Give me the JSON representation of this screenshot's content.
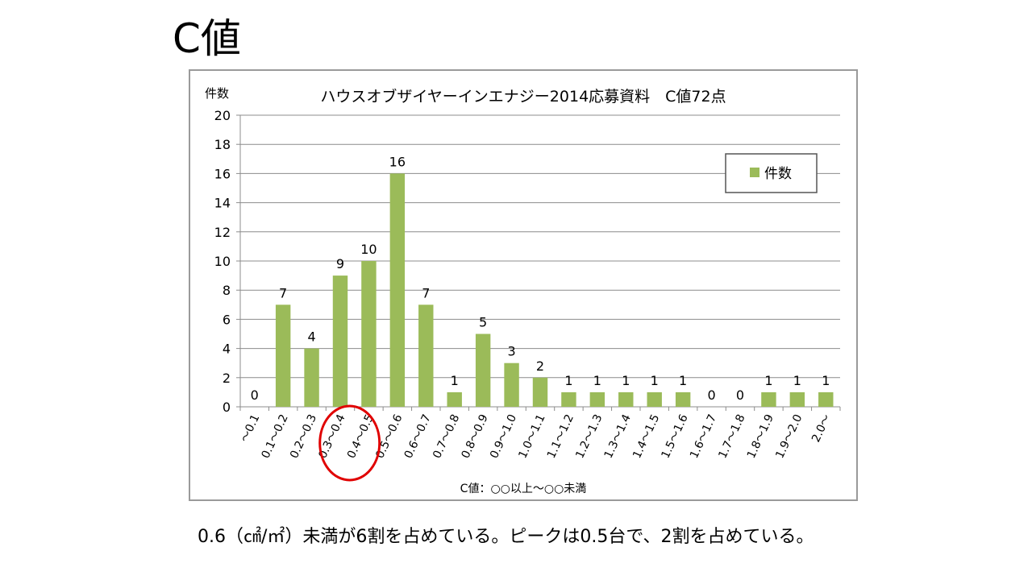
{
  "slide": {
    "title": "C値",
    "caption": "0.6（㎠/㎡）未満が6割を占めている。ピークは0.5台で、2割を占めている。"
  },
  "chart_data": {
    "type": "bar",
    "title": "ハウスオブザイヤーインエナジー2014応募資料　C値72点",
    "ylabel": "件数",
    "xlabel": "C値：○○以上～○○未満",
    "ylim": [
      0,
      20
    ],
    "yticks": [
      0,
      2,
      4,
      6,
      8,
      10,
      12,
      14,
      16,
      18,
      20
    ],
    "grid": true,
    "legend_position": "top-right",
    "bar_color": "#9bbb59",
    "highlight_color": "#e00000",
    "categories": [
      "～0.1",
      "0.1～0.2",
      "0.2～0.3",
      "0.3～0.4",
      "0.4～0.5",
      "0.5～0.6",
      "0.6～0.7",
      "0.7～0.8",
      "0.8～0.9",
      "0.9～1.0",
      "1.0～1.1",
      "1.1～1.2",
      "1.2～1.3",
      "1.3～1.4",
      "1.4～1.5",
      "1.5～1.6",
      "1.6～1.7",
      "1.7～1.8",
      "1.8～1.9",
      "1.9～2.0",
      "2.0～"
    ],
    "series": [
      {
        "name": "件数",
        "values": [
          0,
          7,
          4,
          9,
          10,
          16,
          7,
          1,
          5,
          3,
          2,
          1,
          1,
          1,
          1,
          1,
          0,
          0,
          1,
          1,
          1
        ]
      }
    ],
    "highlighted_categories": [
      "0.3～0.4",
      "0.4～0.5"
    ]
  }
}
